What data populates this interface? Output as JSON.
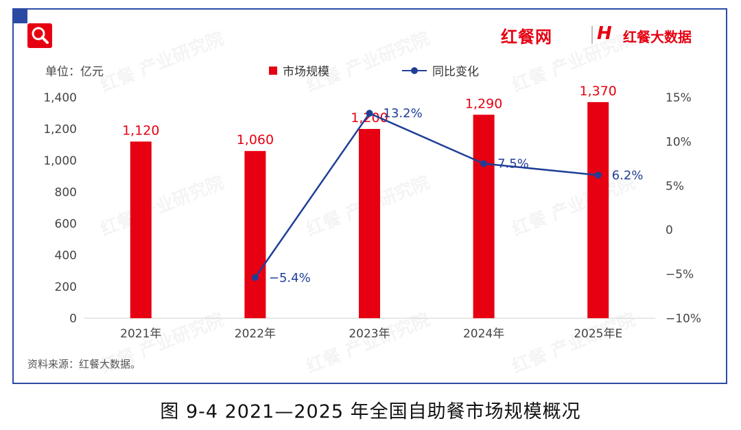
{
  "brand": {
    "left_name": "红餐网",
    "right_mark": "H",
    "right_name": "红餐大数据",
    "accent": "#e60012",
    "frame_color": "#2b4aa3"
  },
  "watermark": {
    "text": "红餐 产业研究院"
  },
  "unit_label": "单位：亿元",
  "source_text": "资料来源：红餐大数据。",
  "caption": "图 9-4    2021—2025 年全国自助餐市场规模概况",
  "icons": {
    "badge": "search-icon"
  },
  "chart_data": {
    "type": "bar",
    "categories": [
      "2021年",
      "2022年",
      "2023年",
      "2024年",
      "2025年E"
    ],
    "series": [
      {
        "name": "市场规模",
        "kind": "bar",
        "axis": "left",
        "color": "#e60012",
        "values": [
          1120,
          1060,
          1200,
          1290,
          1370
        ],
        "labels": [
          "1,120",
          "1,060",
          "1,200",
          "1,290",
          "1,370"
        ]
      },
      {
        "name": "同比变化",
        "kind": "line",
        "axis": "right",
        "color": "#1f3e96",
        "values": [
          null,
          -5.4,
          13.2,
          7.5,
          6.2
        ],
        "labels": [
          "",
          "−5.4%",
          "13.2%",
          "7.5%",
          "6.2%"
        ]
      }
    ],
    "y_left": {
      "min": 0,
      "max": 1400,
      "ticks": [
        "0",
        "200",
        "400",
        "600",
        "800",
        "1,000",
        "1,200",
        "1,400"
      ]
    },
    "y_right": {
      "min": -10,
      "max": 15,
      "ticks": [
        "−10%",
        "−5%",
        "0",
        "5%",
        "10%",
        "15%"
      ]
    },
    "legend_position": "top-center",
    "grid": false
  }
}
